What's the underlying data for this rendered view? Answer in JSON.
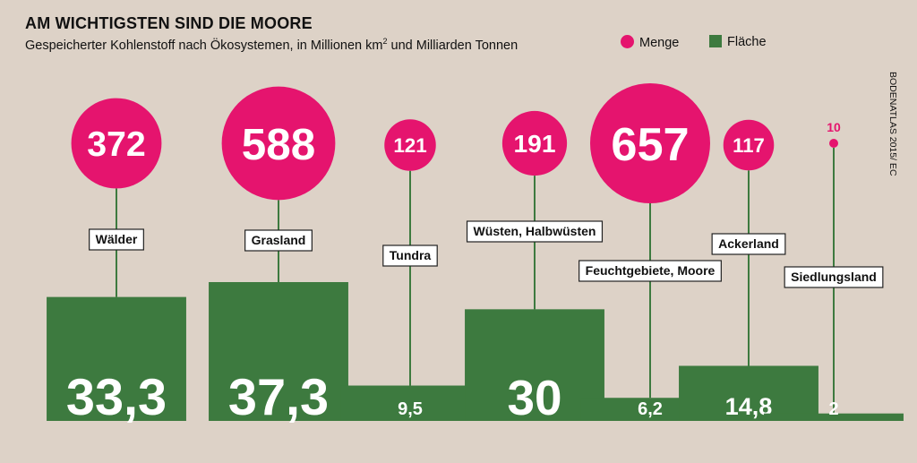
{
  "title": "AM WICHTIGSTEN SIND DIE MOORE",
  "subtitle": "Gespeicherter Kohlenstoff nach Ökosystemen, in Millionen km² und Milliarden Tonnen",
  "legend": {
    "menge": "Menge",
    "flaeche": "Fläche"
  },
  "source": "BODENATLAS 2015/ EC",
  "colors": {
    "menge": "#e5146e",
    "flaeche": "#3d7a3f",
    "background": "#ddd2c7",
    "stem": "#3d7a3f"
  },
  "chart_data": {
    "type": "bar",
    "categories": [
      "Wälder",
      "Grasland",
      "Tundra",
      "Wüsten, Halbwüsten",
      "Feuchtgebiete, Moore",
      "Ackerland",
      "Siedlungsland"
    ],
    "series": [
      {
        "name": "Menge",
        "values": [
          372,
          588,
          121,
          191,
          657,
          117,
          10
        ],
        "value_labels": [
          "372",
          "588",
          "121",
          "191",
          "657",
          "117",
          "10"
        ]
      },
      {
        "name": "Fläche",
        "values": [
          33.3,
          37.3,
          9.5,
          30,
          6.2,
          14.8,
          2
        ],
        "value_labels": [
          "33,3",
          "37,3",
          "9,5",
          "30",
          "6,2",
          "14,8",
          "2"
        ]
      }
    ]
  }
}
